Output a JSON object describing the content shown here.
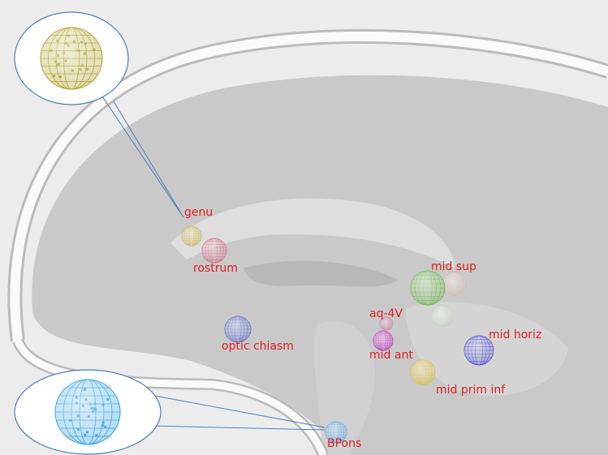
{
  "landmarks": [
    {
      "label": "genu"
    },
    {
      "label": "rostrum"
    },
    {
      "label": "mid sup"
    },
    {
      "label": "aq-4V"
    },
    {
      "label": "mid ant"
    },
    {
      "label": "mid horiz"
    },
    {
      "label": "optic chiasm"
    },
    {
      "label": "mid prim inf"
    },
    {
      "label": "BPons"
    }
  ]
}
